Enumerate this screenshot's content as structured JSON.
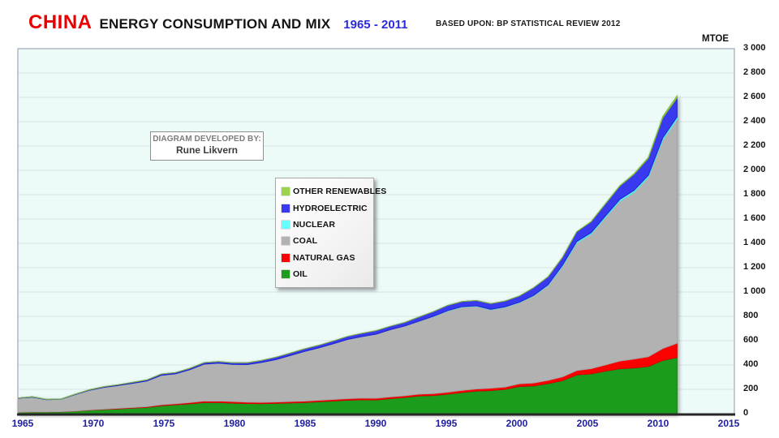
{
  "header": {
    "title_country": "CHINA",
    "title_main": "ENERGY CONSUMPTION AND MIX",
    "title_years": "1965 - 2011",
    "source_note": "BASED UPON: BP STATISTICAL REVIEW 2012",
    "unit_label": "MTOE"
  },
  "credit_box": {
    "line1": "DIAGRAM DEVELOPED BY:",
    "line2": "Rune Likvern"
  },
  "chart_data": {
    "type": "area",
    "stacked": true,
    "title": "CHINA ENERGY CONSUMPTION AND MIX 1965 - 2011",
    "ylabel": "MTOE",
    "ylim": [
      0,
      3000
    ],
    "ytick_step": 200,
    "xticks": [
      1965,
      1970,
      1975,
      1980,
      1985,
      1990,
      1995,
      2000,
      2005,
      2010,
      2015
    ],
    "xlim": [
      1965,
      2015
    ],
    "grid": true,
    "legend_position": "center-left floating box, items listed top-to-bottom in reverse stack order",
    "style": {
      "plot_bg": "#ecfaf8",
      "grid_color": "#d8e2e8",
      "border_color": "#a2a6b6",
      "axis_line_color": "#262626",
      "x_tick_label_color": "#20209e",
      "y_tick_label_color": "#141414"
    },
    "x": [
      1965,
      1966,
      1967,
      1968,
      1969,
      1970,
      1971,
      1972,
      1973,
      1974,
      1975,
      1976,
      1977,
      1978,
      1979,
      1980,
      1981,
      1982,
      1983,
      1984,
      1985,
      1986,
      1987,
      1988,
      1989,
      1990,
      1991,
      1992,
      1993,
      1994,
      1995,
      1996,
      1997,
      1998,
      1999,
      2000,
      2001,
      2002,
      2003,
      2004,
      2005,
      2006,
      2007,
      2008,
      2009,
      2010,
      2011
    ],
    "series": [
      {
        "name": "OIL",
        "color": "#1c9c1c",
        "edge": "#0f7f0f",
        "values": [
          10.9,
          13.5,
          13.9,
          15.2,
          20.3,
          28.2,
          34.2,
          39.5,
          45.7,
          51.3,
          65.3,
          73.0,
          80.8,
          91.3,
          91.4,
          87.1,
          83.1,
          82.6,
          85.1,
          88.5,
          91.8,
          98.2,
          104.5,
          110.6,
          114.5,
          112.8,
          124.4,
          133.5,
          145.8,
          149.5,
          160.7,
          174.4,
          185.6,
          190.3,
          200.0,
          223.6,
          227.9,
          247.5,
          271.7,
          318.9,
          327.8,
          349.8,
          369.3,
          376.0,
          388.2,
          437.7,
          461.8
        ]
      },
      {
        "name": "NATURAL GAS",
        "color": "#fb0000",
        "edge": "#d40000",
        "values": [
          1.0,
          1.1,
          1.2,
          1.3,
          1.8,
          2.6,
          3.4,
          4.3,
          5.0,
          6.2,
          7.9,
          9.1,
          10.7,
          12.4,
          13.1,
          12.8,
          11.5,
          10.8,
          11.0,
          11.3,
          11.6,
          12.0,
          12.4,
          12.8,
          13.5,
          13.8,
          14.1,
          14.3,
          15.0,
          15.8,
          16.1,
          16.9,
          17.5,
          18.5,
          19.5,
          22.1,
          24.9,
          26.5,
          30.5,
          35.7,
          42.1,
          50.5,
          63.3,
          73.2,
          80.1,
          98.1,
          117.6
        ]
      },
      {
        "name": "COAL",
        "color": "#b2b2b2",
        "edge": "#a4a4a4",
        "values": [
          114.3,
          121.5,
          100.1,
          101.5,
          134.0,
          161.3,
          178.4,
          187.6,
          198.7,
          210.5,
          241.9,
          245.5,
          270.1,
          303.4,
          310.2,
          305.3,
          308.7,
          327.3,
          348.2,
          377.9,
          408.1,
          430.6,
          457.5,
          486.5,
          505.0,
          527.0,
          552.5,
          572.8,
          599.6,
          632.6,
          667.4,
          685.0,
          680.0,
          645.5,
          655.5,
          667.3,
          716.0,
          779.8,
          907.3,
          1049.0,
          1105.0,
          1212.3,
          1313.4,
          1370.1,
          1475.5,
          1713.5,
          1839.4
        ]
      },
      {
        "name": "NUCLEAR",
        "color": "#66ffff",
        "edge": "#4ae8e8",
        "values": [
          0,
          0,
          0,
          0,
          0,
          0,
          0,
          0,
          0,
          0,
          0,
          0,
          0,
          0,
          0,
          0,
          0,
          0,
          0,
          0,
          0,
          0,
          0,
          0,
          0,
          0,
          0,
          0,
          0.4,
          3.1,
          2.9,
          3.2,
          3.3,
          3.2,
          3.4,
          3.8,
          4.0,
          5.9,
          9.8,
          11.3,
          12.0,
          12.4,
          14.1,
          15.5,
          15.9,
          16.7,
          19.5
        ]
      },
      {
        "name": "HYDROELECTRIC",
        "color": "#3939f0",
        "edge": "#2222cc",
        "values": [
          2.3,
          2.9,
          2.5,
          2.4,
          3.9,
          4.6,
          5.7,
          6.5,
          8.0,
          9.3,
          10.6,
          10.3,
          10.9,
          12.6,
          13.5,
          13.1,
          14.7,
          16.8,
          19.5,
          19.7,
          20.9,
          21.4,
          22.7,
          24.7,
          26.8,
          28.7,
          27.9,
          29.5,
          34.3,
          37.9,
          43.1,
          42.4,
          43.9,
          46.8,
          47.3,
          50.3,
          62.9,
          65.3,
          64.2,
          80.1,
          89.8,
          98.5,
          109.8,
          132.4,
          139.3,
          163.4,
          157.0
        ]
      },
      {
        "name": "OTHER RENEWABLES",
        "color": "#9bd44a",
        "edge": "#83bc33",
        "values": [
          0,
          0,
          0,
          0,
          0,
          0,
          0,
          0,
          0,
          0,
          0,
          0,
          0,
          0,
          0,
          0,
          0,
          0,
          0,
          0,
          0,
          0,
          0,
          0,
          0,
          0,
          0,
          0,
          0,
          0,
          0,
          0,
          0,
          0,
          0,
          0.6,
          0.7,
          0.8,
          1.0,
          1.3,
          1.9,
          2.6,
          3.9,
          5.6,
          8.1,
          12.1,
          17.7
        ]
      }
    ]
  }
}
